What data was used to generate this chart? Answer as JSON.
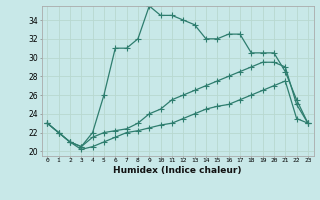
{
  "xlabel": "Humidex (Indice chaleur)",
  "x_values": [
    0,
    1,
    2,
    3,
    4,
    5,
    6,
    7,
    8,
    9,
    10,
    11,
    12,
    13,
    14,
    15,
    16,
    17,
    18,
    19,
    20,
    21,
    22,
    23
  ],
  "line1": [
    23,
    22,
    21,
    20.5,
    22,
    26,
    31,
    31,
    32,
    35.5,
    34.5,
    34.5,
    34,
    33.5,
    32,
    32,
    32.5,
    32.5,
    30.5,
    30.5,
    30.5,
    28.5,
    25.5,
    23
  ],
  "line2": [
    23,
    22,
    21,
    20.5,
    21.5,
    22,
    22.2,
    22.4,
    23,
    24,
    24.5,
    25.5,
    26,
    26.5,
    27,
    27.5,
    28,
    28.5,
    29,
    29.5,
    29.5,
    29,
    25,
    23
  ],
  "line3": [
    23,
    22,
    21,
    20.2,
    20.5,
    21,
    21.5,
    22,
    22.2,
    22.5,
    22.8,
    23,
    23.5,
    24,
    24.5,
    24.8,
    25,
    25.5,
    26,
    26.5,
    27,
    27.5,
    23.5,
    23
  ],
  "ylim": [
    19.5,
    35.5
  ],
  "xlim": [
    -0.5,
    23.5
  ],
  "yticks": [
    20,
    22,
    24,
    26,
    28,
    30,
    32,
    34
  ],
  "xtick_labels": [
    "0",
    "1",
    "2",
    "3",
    "4",
    "5",
    "6",
    "7",
    "8",
    "9",
    "10",
    "11",
    "12",
    "13",
    "14",
    "15",
    "16",
    "17",
    "18",
    "19",
    "20",
    "21",
    "22",
    "23"
  ],
  "line_color": "#2e7d6e",
  "bg_color": "#c8e8e8",
  "grid_color": "#b8d8d0",
  "marker_size": 3.5,
  "linewidth": 0.9
}
